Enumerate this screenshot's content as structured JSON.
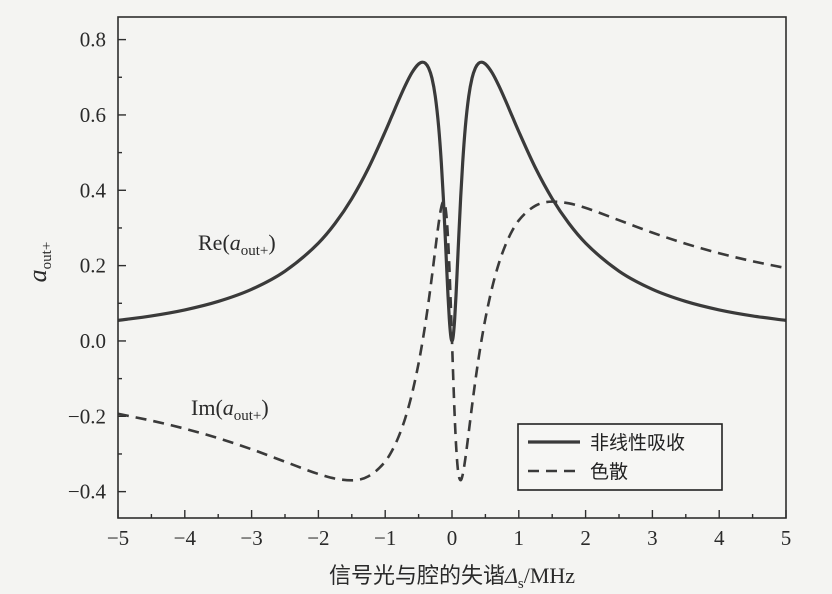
{
  "chart_data": {
    "type": "line",
    "xlabel": {
      "text": "信号光与腔的失谐",
      "var": "Δ",
      "sub": "s",
      "unit": "/MHz"
    },
    "ylabel": {
      "var": "a",
      "sub": "out+"
    },
    "xlim": [
      -5,
      5
    ],
    "ylim": [
      -0.47,
      0.86
    ],
    "x_ticks": [
      -5,
      -4,
      -3,
      -2,
      -1,
      0,
      1,
      2,
      3,
      4,
      5
    ],
    "x_tick_labels": [
      "−5",
      "−4",
      "−3",
      "−2",
      "−1",
      "0",
      "1",
      "2",
      "3",
      "4",
      "5"
    ],
    "y_ticks": [
      -0.4,
      -0.2,
      0.0,
      0.2,
      0.4,
      0.6,
      0.8
    ],
    "y_tick_labels": [
      "−0.4",
      "−0.2",
      "0.0",
      "0.2",
      "0.4",
      "0.6",
      "0.8"
    ],
    "grid": false,
    "legend": {
      "position": "bottom-right"
    },
    "x": [
      -5,
      -4.5,
      -4,
      -3.5,
      -3,
      -2.5,
      -2,
      -1.75,
      -1.5,
      -1.25,
      -1,
      -0.9,
      -0.8,
      -0.7,
      -0.6,
      -0.5,
      -0.44,
      -0.4,
      -0.35,
      -0.3,
      -0.25,
      -0.2,
      -0.16,
      -0.13,
      -0.1,
      -0.08,
      -0.06,
      -0.04,
      -0.02,
      -0.01,
      0,
      0.01,
      0.02,
      0.04,
      0.06,
      0.08,
      0.1,
      0.13,
      0.16,
      0.2,
      0.25,
      0.3,
      0.35,
      0.4,
      0.44,
      0.5,
      0.6,
      0.7,
      0.8,
      0.9,
      1,
      1.25,
      1.5,
      1.75,
      2,
      2.5,
      3,
      3.5,
      4,
      4.5,
      5
    ],
    "series": [
      {
        "name": "非线性吸收",
        "line_style": "solid",
        "color": "#3a3a3a",
        "values": [
          0.0546,
          0.0665,
          0.0825,
          0.1049,
          0.1371,
          0.1853,
          0.2598,
          0.3121,
          0.3778,
          0.4591,
          0.5557,
          0.5971,
          0.6386,
          0.678,
          0.7121,
          0.7352,
          0.74,
          0.7373,
          0.7247,
          0.6976,
          0.649,
          0.5688,
          0.4736,
          0.3809,
          0.2721,
          0.1951,
          0.121,
          0.058,
          0.0152,
          0.0039,
          0.0,
          0.0039,
          0.0152,
          0.058,
          0.121,
          0.1951,
          0.2721,
          0.3809,
          0.4736,
          0.5688,
          0.649,
          0.6976,
          0.7247,
          0.7373,
          0.74,
          0.7352,
          0.7121,
          0.678,
          0.6386,
          0.5971,
          0.5557,
          0.4591,
          0.3778,
          0.3121,
          0.2598,
          0.1853,
          0.1371,
          0.1049,
          0.0825,
          0.0665,
          0.0546
        ]
      },
      {
        "name": "色散",
        "line_style": "dashed",
        "color": "#3a3a3a",
        "values": [
          -0.1934,
          -0.2116,
          -0.2329,
          -0.2581,
          -0.2875,
          -0.3206,
          -0.3532,
          -0.3654,
          -0.3699,
          -0.3591,
          -0.3201,
          -0.2921,
          -0.2545,
          -0.2051,
          -0.1411,
          -0.0592,
          0.0,
          0.0442,
          0.1052,
          0.1721,
          0.2431,
          0.312,
          0.3552,
          0.3698,
          0.3568,
          0.326,
          0.2737,
          0.1989,
          0.105,
          0.0533,
          0.0,
          -0.0533,
          -0.105,
          -0.1989,
          -0.2737,
          -0.326,
          -0.3568,
          -0.3698,
          -0.3552,
          -0.312,
          -0.2431,
          -0.1721,
          -0.1052,
          -0.0442,
          0.0,
          0.0592,
          0.1411,
          0.2051,
          0.2545,
          0.2921,
          0.3201,
          0.3591,
          0.3699,
          0.3654,
          0.3532,
          0.3206,
          0.2875,
          0.2581,
          0.2329,
          0.2116,
          0.1934
        ]
      }
    ],
    "annotations": [
      {
        "prefix": "Re(",
        "var": "a",
        "sub": "out+",
        "suffix": ")"
      },
      {
        "prefix": "Im(",
        "var": "a",
        "sub": "out+",
        "suffix": ")"
      }
    ]
  }
}
